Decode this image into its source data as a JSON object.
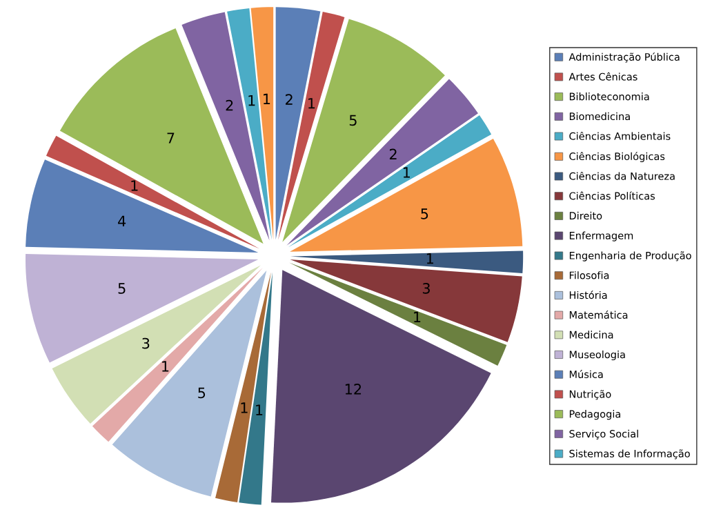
{
  "chart_data": {
    "type": "pie",
    "categories": [
      "Administração Pública",
      "Artes Cênicas",
      "Biblioteconomia",
      "Biomedicina",
      "Ciências Ambientais",
      "Ciências Biológicas",
      "Ciências da Natureza",
      "Ciências Políticas",
      "Direito",
      "Enfermagem",
      "Engenharia de Produção",
      "Filosofia",
      "História",
      "Matemática",
      "Medicina",
      "Museologia",
      "Música",
      "Nutrição",
      "Pedagogia",
      "Serviço Social",
      "Sistemas de Informação",
      null
    ],
    "values": [
      2,
      1,
      5,
      2,
      1,
      5,
      1,
      3,
      1,
      12,
      1,
      1,
      5,
      1,
      3,
      5,
      4,
      1,
      7,
      2,
      1,
      1
    ],
    "colors": [
      "#5b7fb7",
      "#c0504d",
      "#9bbb59",
      "#8064a2",
      "#4bacc6",
      "#f79646",
      "#3b5a80",
      "#86383a",
      "#6b8040",
      "#5a4670",
      "#33788a",
      "#a86a37",
      "#abc0dc",
      "#e3a9a8",
      "#d2dfb4",
      "#bfb2d5",
      "#5b7fb7",
      "#c0504d",
      "#9bbb59",
      "#8064a2",
      "#4bacc6",
      "#f79646"
    ],
    "data_labels": true,
    "legend": "right"
  }
}
